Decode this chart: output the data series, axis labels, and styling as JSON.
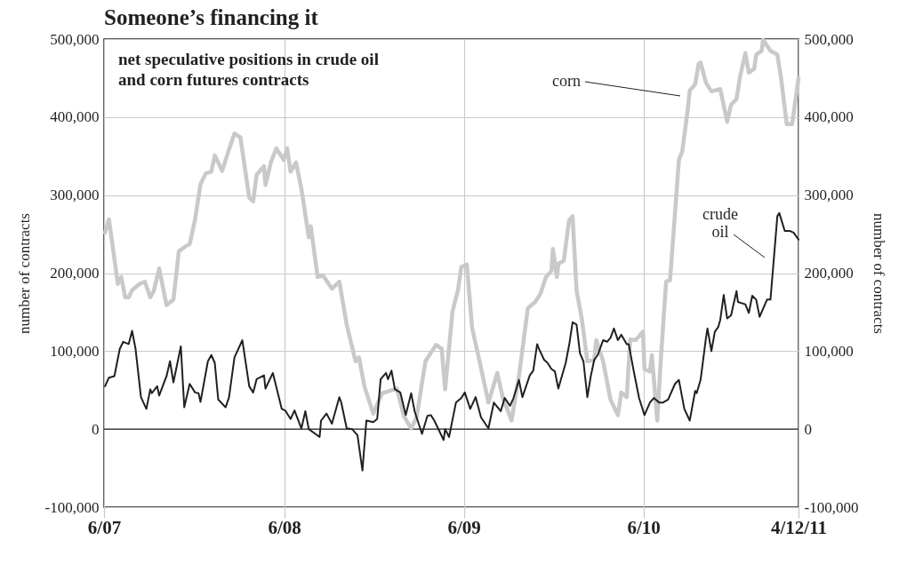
{
  "chart_data": {
    "type": "line",
    "title": "Someone’s financing it",
    "subtitle": "net speculative positions in crude oil and corn futures contracts",
    "ylabel": "number of contracts",
    "y2label": "number of contracts",
    "xlim": [
      "2007-06-01",
      "2011-04-12"
    ],
    "xticks": [
      {
        "value": "2007-06-01",
        "label": "6/07"
      },
      {
        "value": "2008-06-01",
        "label": "6/08"
      },
      {
        "value": "2009-06-01",
        "label": "6/09"
      },
      {
        "value": "2010-06-01",
        "label": "6/10"
      },
      {
        "value": "2011-04-12",
        "label": "4/12/11"
      }
    ],
    "ylim": [
      -100000,
      500000
    ],
    "yticks": [
      {
        "value": -100000,
        "label": "-100,000"
      },
      {
        "value": 0,
        "label": "0"
      },
      {
        "value": 100000,
        "label": "100,000"
      },
      {
        "value": 200000,
        "label": "200,000"
      },
      {
        "value": 300000,
        "label": "300,000"
      },
      {
        "value": 400000,
        "label": "400,000"
      },
      {
        "value": 500000,
        "label": "500,000"
      }
    ],
    "y2lim": [
      -100000,
      500000
    ],
    "y2ticks": [
      {
        "value": -100000,
        "label": "-100,000"
      },
      {
        "value": 0,
        "label": "0"
      },
      {
        "value": 100000,
        "label": "100,000"
      },
      {
        "value": 200000,
        "label": "200,000"
      },
      {
        "value": 300000,
        "label": "300,000"
      },
      {
        "value": 400000,
        "label": "400,000"
      },
      {
        "value": 500000,
        "label": "500,000"
      }
    ],
    "grid": true,
    "ref_lines": [
      {
        "axis": "y",
        "value": 0,
        "color": "#231f20"
      }
    ],
    "annotations": [
      "corn",
      "crude oil"
    ],
    "series": [
      {
        "color": "#c8c9cb",
        "x": [
          "2007-06-03",
          "2007-06-11",
          "2007-06-29",
          "2007-07-06",
          "2007-07-14",
          "2007-07-21",
          "2007-07-28",
          "2007-08-12",
          "2007-08-23",
          "2007-09-03",
          "2007-09-10",
          "2007-09-21",
          "2007-10-06",
          "2007-10-20",
          "2007-10-31",
          "2007-11-15",
          "2007-11-22",
          "2007-12-03",
          "2007-12-14",
          "2007-12-25",
          "2008-01-05",
          "2008-01-12",
          "2008-01-27",
          "2008-02-07",
          "2008-02-21",
          "2008-03-04",
          "2008-03-22",
          "2008-03-30",
          "2008-04-06",
          "2008-04-21",
          "2008-04-24",
          "2008-05-05",
          "2008-05-16",
          "2008-05-31",
          "2008-06-07",
          "2008-06-14",
          "2008-06-25",
          "2008-07-06",
          "2008-07-21",
          "2008-07-25",
          "2008-08-08",
          "2008-08-19",
          "2008-09-06",
          "2008-09-21",
          "2008-10-06",
          "2008-10-24",
          "2008-10-31",
          "2008-11-11",
          "2008-11-29",
          "2008-12-17",
          "2009-01-01",
          "2009-01-16",
          "2009-01-30",
          "2009-02-14",
          "2009-02-25",
          "2009-03-15",
          "2009-03-26",
          "2009-04-06",
          "2009-04-17",
          "2009-04-24",
          "2009-05-09",
          "2009-05-20",
          "2009-05-27",
          "2009-06-07",
          "2009-06-18",
          "2009-07-03",
          "2009-07-21",
          "2009-08-08",
          "2009-08-19",
          "2009-09-06",
          "2009-09-21",
          "2009-10-09",
          "2009-10-24",
          "2009-11-04",
          "2009-11-15",
          "2009-11-26",
          "2009-11-29",
          "2009-12-07",
          "2009-12-10",
          "2009-12-21",
          "2010-01-01",
          "2010-01-08",
          "2010-01-16",
          "2010-01-27",
          "2010-02-07",
          "2010-02-21",
          "2010-02-25",
          "2010-03-11",
          "2010-03-26",
          "2010-04-10",
          "2010-04-17",
          "2010-04-28",
          "2010-05-05",
          "2010-05-16",
          "2010-05-31",
          "2010-06-03",
          "2010-06-14",
          "2010-06-18",
          "2010-06-29",
          "2010-07-06",
          "2010-07-17",
          "2010-07-25",
          "2010-08-12",
          "2010-08-19",
          "2010-08-30",
          "2010-09-03",
          "2010-09-14",
          "2010-09-21",
          "2010-09-25",
          "2010-10-06",
          "2010-10-17",
          "2010-11-04",
          "2010-11-18",
          "2010-11-26",
          "2010-12-07",
          "2010-12-14",
          "2010-12-25",
          "2011-01-01",
          "2011-01-12",
          "2011-01-16",
          "2011-01-27",
          "2011-01-30",
          "2011-02-14",
          "2011-02-28",
          "2011-03-08",
          "2011-03-19",
          "2011-03-30",
          "2011-04-12"
        ],
        "values": [
          252000,
          269000,
          186000,
          195000,
          169000,
          169000,
          178000,
          186000,
          189000,
          169000,
          177000,
          206000,
          159000,
          166000,
          228000,
          235000,
          237000,
          269000,
          314000,
          328000,
          330000,
          351000,
          331000,
          353000,
          379000,
          374000,
          297000,
          292000,
          326000,
          337000,
          313000,
          342000,
          360000,
          345000,
          360000,
          330000,
          342000,
          308000,
          246000,
          260000,
          195000,
          197000,
          180000,
          189000,
          134000,
          87000,
          92000,
          55000,
          20000,
          46000,
          49000,
          52000,
          17000,
          1000,
          15000,
          87000,
          98000,
          108000,
          103000,
          51000,
          151000,
          178000,
          208000,
          211000,
          129000,
          87000,
          34000,
          72000,
          41000,
          11000,
          68000,
          155000,
          163000,
          174000,
          195000,
          203000,
          231000,
          195000,
          212000,
          216000,
          268000,
          273000,
          178000,
          140000,
          87000,
          89000,
          114000,
          87000,
          38000,
          18000,
          47000,
          41000,
          115000,
          114000,
          125000,
          77000,
          74000,
          95000,
          11000,
          87000,
          189000,
          191000,
          345000,
          357000,
          410000,
          434000,
          442000,
          468000,
          470000,
          444000,
          433000,
          436000,
          394000,
          416000,
          423000,
          451000,
          482000,
          457000,
          462000,
          480000,
          485000,
          499000,
          485000,
          480000,
          448000,
          391000,
          391000,
          450000
        ]
      },
      {
        "color": "#231f20",
        "x": [
          "2007-06-03",
          "2007-06-11",
          "2007-06-22",
          "2007-07-03",
          "2007-07-10",
          "2007-07-21",
          "2007-07-28",
          "2007-08-04",
          "2007-08-15",
          "2007-08-26",
          "2007-09-03",
          "2007-09-06",
          "2007-09-17",
          "2007-09-21",
          "2007-10-06",
          "2007-10-13",
          "2007-10-20",
          "2007-11-04",
          "2007-11-11",
          "2007-11-22",
          "2007-12-03",
          "2007-12-10",
          "2007-12-14",
          "2007-12-29",
          "2008-01-05",
          "2008-01-12",
          "2008-01-19",
          "2008-02-03",
          "2008-02-10",
          "2008-02-21",
          "2008-03-08",
          "2008-03-22",
          "2008-03-30",
          "2008-04-06",
          "2008-04-21",
          "2008-04-24",
          "2008-05-09",
          "2008-05-27",
          "2008-06-03",
          "2008-06-14",
          "2008-06-22",
          "2008-07-06",
          "2008-07-14",
          "2008-07-21",
          "2008-08-12",
          "2008-08-15",
          "2008-08-26",
          "2008-09-06",
          "2008-09-21",
          "2008-09-25",
          "2008-10-06",
          "2008-10-17",
          "2008-10-28",
          "2008-11-07",
          "2008-11-15",
          "2008-11-29",
          "2008-12-07",
          "2008-12-14",
          "2008-12-25",
          "2008-12-29",
          "2009-01-05",
          "2009-01-12",
          "2009-01-23",
          "2009-02-03",
          "2009-02-14",
          "2009-02-21",
          "2009-03-08",
          "2009-03-19",
          "2009-03-26",
          "2009-04-02",
          "2009-04-21",
          "2009-04-24",
          "2009-05-02",
          "2009-05-16",
          "2009-05-27",
          "2009-06-03",
          "2009-06-14",
          "2009-06-25",
          "2009-07-06",
          "2009-07-21",
          "2009-08-01",
          "2009-08-15",
          "2009-08-23",
          "2009-09-03",
          "2009-09-10",
          "2009-09-21",
          "2009-09-28",
          "2009-10-13",
          "2009-10-20",
          "2009-10-28",
          "2009-10-31",
          "2009-11-11",
          "2009-11-18",
          "2009-11-26",
          "2009-12-03",
          "2009-12-10",
          "2009-12-25",
          "2010-01-01",
          "2010-01-08",
          "2010-01-16",
          "2010-01-23",
          "2010-01-30",
          "2010-02-07",
          "2010-02-14",
          "2010-02-21",
          "2010-02-28",
          "2010-03-11",
          "2010-03-19",
          "2010-03-26",
          "2010-04-02",
          "2010-04-10",
          "2010-04-17",
          "2010-04-28",
          "2010-05-02",
          "2010-05-12",
          "2010-05-23",
          "2010-06-03",
          "2010-06-14",
          "2010-06-22",
          "2010-07-03",
          "2010-07-10",
          "2010-07-21",
          "2010-08-04",
          "2010-08-12",
          "2010-08-23",
          "2010-09-03",
          "2010-09-14",
          "2010-09-17",
          "2010-09-25",
          "2010-10-06",
          "2010-10-09",
          "2010-10-17",
          "2010-10-24",
          "2010-10-31",
          "2010-11-04",
          "2010-11-11",
          "2010-11-18",
          "2010-11-26",
          "2010-12-07",
          "2010-12-10",
          "2010-12-25",
          "2011-01-01",
          "2011-01-08",
          "2011-01-16",
          "2011-01-23",
          "2011-02-07",
          "2011-02-14",
          "2011-02-28",
          "2011-03-04",
          "2011-03-15",
          "2011-03-26",
          "2011-04-02",
          "2011-04-12"
        ],
        "values": [
          55000,
          66000,
          68000,
          103000,
          112000,
          109000,
          126000,
          103000,
          41000,
          26000,
          51000,
          46000,
          55000,
          43000,
          68000,
          87000,
          60000,
          106000,
          28000,
          58000,
          47000,
          46000,
          35000,
          87000,
          95000,
          85000,
          38000,
          28000,
          41000,
          92000,
          114000,
          55000,
          47000,
          64000,
          69000,
          52000,
          72000,
          26000,
          24000,
          13000,
          24000,
          1000,
          23000,
          0,
          -10000,
          11000,
          20000,
          7000,
          41000,
          34000,
          1000,
          0,
          -8000,
          -53000,
          11000,
          9000,
          13000,
          64000,
          72000,
          64000,
          75000,
          51000,
          47000,
          18000,
          46000,
          23000,
          -6000,
          17000,
          18000,
          11000,
          -14000,
          0,
          -10000,
          34000,
          40000,
          47000,
          26000,
          41000,
          15000,
          1000,
          34000,
          23000,
          40000,
          30000,
          40000,
          63000,
          41000,
          69000,
          75000,
          109000,
          104000,
          89000,
          85000,
          77000,
          74000,
          52000,
          85000,
          108000,
          137000,
          134000,
          97000,
          87000,
          41000,
          68000,
          89000,
          95000,
          114000,
          112000,
          117000,
          129000,
          114000,
          121000,
          109000,
          109000,
          75000,
          40000,
          18000,
          34000,
          40000,
          34000,
          34000,
          38000,
          58000,
          63000,
          26000,
          11000,
          49000,
          46000,
          63000,
          117000,
          129000,
          100000,
          125000,
          131000,
          140000,
          172000,
          142000,
          146000,
          177000,
          163000,
          160000,
          149000,
          171000,
          166000,
          144000,
          166000,
          166000,
          273000,
          277000,
          254000,
          254000,
          252000,
          243000
        ]
      }
    ]
  }
}
